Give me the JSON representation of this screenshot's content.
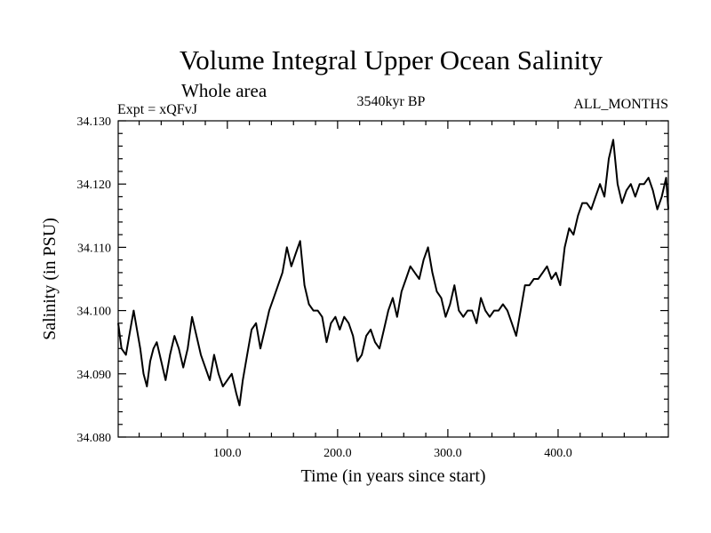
{
  "header": {
    "title": "Volume Integral Upper Ocean Salinity",
    "subtitle": "Whole area",
    "experiment": "Expt = xQFvJ",
    "period": "3540kyr BP",
    "months": "ALL_MONTHS"
  },
  "chart_data": {
    "type": "line",
    "title": "Volume Integral Upper Ocean Salinity",
    "xlabel": "Time (in years since start)",
    "ylabel": "Salinity (in PSU)",
    "xlim": [
      1,
      500
    ],
    "ylim": [
      34.08,
      34.13
    ],
    "x_ticks": [
      100,
      200,
      300,
      400
    ],
    "x_tick_labels": [
      "100.0",
      "200.0",
      "300.0",
      "400.0"
    ],
    "y_ticks": [
      34.08,
      34.09,
      34.1,
      34.11,
      34.12,
      34.13
    ],
    "y_tick_labels": [
      "34.080",
      "34.090",
      "34.100",
      "34.110",
      "34.120",
      "34.130"
    ],
    "grid": false,
    "series": [
      {
        "name": "Salinity",
        "color": "#000000",
        "x": [
          1,
          4,
          8,
          12,
          15,
          18,
          21,
          24,
          27,
          30,
          33,
          36,
          40,
          44,
          48,
          52,
          56,
          60,
          64,
          68,
          72,
          76,
          80,
          84,
          88,
          92,
          96,
          100,
          104,
          108,
          111,
          114,
          118,
          122,
          126,
          130,
          134,
          138,
          142,
          146,
          150,
          154,
          158,
          162,
          166,
          170,
          174,
          178,
          182,
          186,
          190,
          194,
          198,
          202,
          206,
          210,
          214,
          218,
          222,
          226,
          230,
          234,
          238,
          242,
          246,
          250,
          254,
          258,
          262,
          266,
          270,
          274,
          278,
          282,
          286,
          290,
          294,
          298,
          302,
          306,
          310,
          314,
          318,
          322,
          326,
          330,
          334,
          338,
          342,
          346,
          350,
          354,
          358,
          362,
          366,
          370,
          374,
          378,
          382,
          386,
          390,
          394,
          398,
          402,
          406,
          410,
          414,
          418,
          422,
          426,
          430,
          434,
          438,
          442,
          446,
          450,
          454,
          458,
          462,
          466,
          470,
          474,
          478,
          482,
          486,
          490,
          494,
          498,
          500
        ],
        "values": [
          34.098,
          34.094,
          34.093,
          34.097,
          34.1,
          34.097,
          34.094,
          34.09,
          34.088,
          34.092,
          34.094,
          34.095,
          34.092,
          34.089,
          34.093,
          34.096,
          34.094,
          34.091,
          34.094,
          34.099,
          34.096,
          34.093,
          34.091,
          34.089,
          34.093,
          34.09,
          34.088,
          34.089,
          34.09,
          34.087,
          34.085,
          34.089,
          34.093,
          34.097,
          34.098,
          34.094,
          34.097,
          34.1,
          34.102,
          34.104,
          34.106,
          34.11,
          34.107,
          34.109,
          34.111,
          34.104,
          34.101,
          34.1,
          34.1,
          34.099,
          34.095,
          34.098,
          34.099,
          34.097,
          34.099,
          34.098,
          34.096,
          34.092,
          34.093,
          34.096,
          34.097,
          34.095,
          34.094,
          34.097,
          34.1,
          34.102,
          34.099,
          34.103,
          34.105,
          34.107,
          34.106,
          34.105,
          34.108,
          34.11,
          34.106,
          34.103,
          34.102,
          34.099,
          34.101,
          34.104,
          34.1,
          34.099,
          34.1,
          34.1,
          34.098,
          34.102,
          34.1,
          34.099,
          34.1,
          34.1,
          34.101,
          34.1,
          34.098,
          34.096,
          34.1,
          34.104,
          34.104,
          34.105,
          34.105,
          34.106,
          34.107,
          34.105,
          34.106,
          34.104,
          34.11,
          34.113,
          34.112,
          34.115,
          34.117,
          34.117,
          34.116,
          34.118,
          34.12,
          34.118,
          34.124,
          34.127,
          34.12,
          34.117,
          34.119,
          34.12,
          34.118,
          34.12,
          34.12,
          34.121,
          34.119,
          34.116,
          34.118,
          34.121,
          34.116
        ]
      }
    ]
  }
}
